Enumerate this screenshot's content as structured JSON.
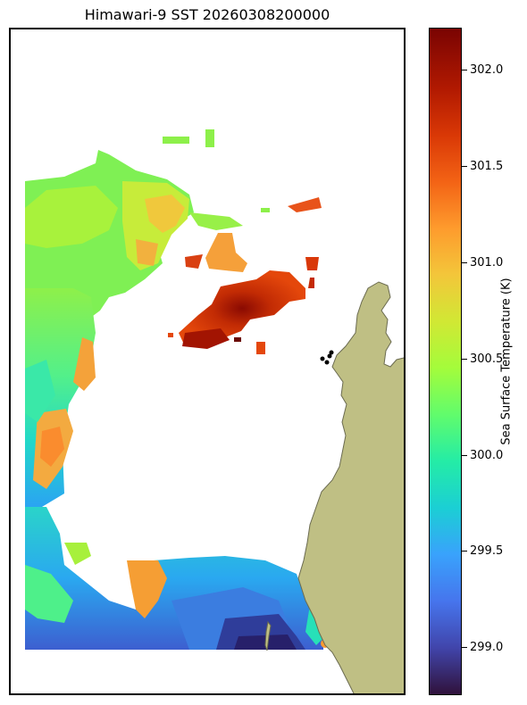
{
  "title": "Himawari-9 SST 20260308200000",
  "colorbar": {
    "label": "Sea Surface Temperature (K)",
    "colormap": "turbo",
    "range": [
      298.75,
      302.22
    ],
    "ticks": [
      "302.0",
      "301.5",
      "301.0",
      "300.5",
      "300.0",
      "299.5",
      "299.0"
    ]
  },
  "colors": {
    "land": "#bfbf84",
    "coastline": "#6b6b50"
  }
}
